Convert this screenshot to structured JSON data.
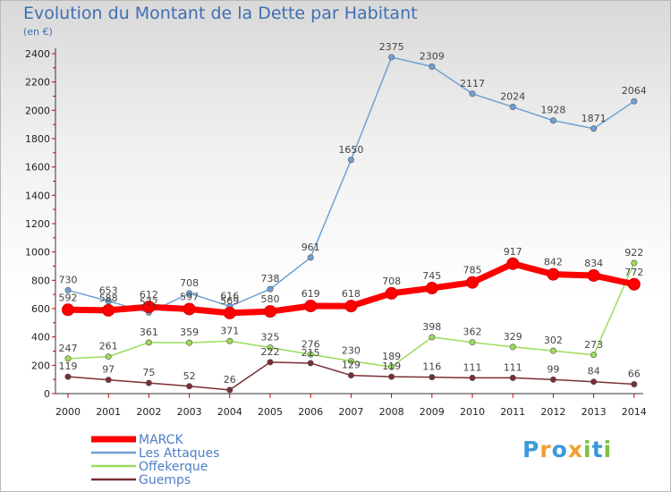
{
  "title": "Evolution du Montant de la Dette par Habitant",
  "unit_label": "(en €)",
  "logo": {
    "text": "Proxiti",
    "letters": [
      {
        "ch": "P",
        "color": "#3b9ad9"
      },
      {
        "ch": "r",
        "color": "#f0a030"
      },
      {
        "ch": "o",
        "color": "#3b9ad9"
      },
      {
        "ch": "x",
        "color": "#f0a030"
      },
      {
        "ch": "i",
        "color": "#7ac143"
      },
      {
        "ch": "t",
        "color": "#3b9ad9"
      },
      {
        "ch": "i",
        "color": "#7ac143"
      }
    ]
  },
  "chart_data": {
    "type": "line",
    "title": "Evolution du Montant de la Dette par Habitant",
    "ylabel": "(en €)",
    "xlabel": "",
    "ylim": [
      0,
      2400
    ],
    "yticks": [
      0,
      200,
      400,
      600,
      800,
      1000,
      1200,
      1400,
      1600,
      1800,
      2000,
      2200,
      2400
    ],
    "categories": [
      "2000",
      "2001",
      "2002",
      "2003",
      "2004",
      "2005",
      "2006",
      "2007",
      "2008",
      "2009",
      "2010",
      "2011",
      "2012",
      "2013",
      "2014"
    ],
    "grid": false,
    "legend_position": "bottom-left",
    "series": [
      {
        "name": "MARCK",
        "color": "#ff0000",
        "values": [
          592,
          588,
          612,
          597,
          569,
          580,
          619,
          618,
          708,
          745,
          785,
          917,
          842,
          834,
          772
        ]
      },
      {
        "name": "Les Attaques",
        "color": "#6fa1d6",
        "values": [
          730,
          653,
          572,
          708,
          616,
          738,
          961,
          1650,
          2375,
          2309,
          2117,
          2024,
          1928,
          1871,
          2064
        ]
      },
      {
        "name": "Offekerque",
        "color": "#9bdc5a",
        "values": [
          247,
          261,
          361,
          359,
          371,
          325,
          276,
          230,
          189,
          398,
          362,
          329,
          302,
          273,
          922
        ]
      },
      {
        "name": "Guemps",
        "color": "#7a2f35",
        "values": [
          119,
          97,
          75,
          52,
          26,
          222,
          215,
          129,
          119,
          116,
          111,
          111,
          99,
          84,
          66
        ]
      }
    ]
  }
}
